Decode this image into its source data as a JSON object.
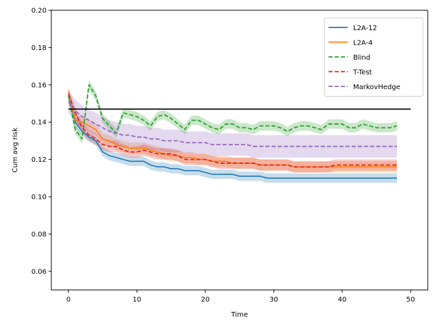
{
  "chart_data": {
    "type": "line",
    "title": "",
    "xlabel": "Time",
    "ylabel": "Cum avg risk",
    "xlim": [
      -2.5,
      52.5
    ],
    "ylim": [
      0.05,
      0.2
    ],
    "xticks": [
      0,
      10,
      20,
      30,
      40,
      50
    ],
    "yticks": [
      0.06,
      0.08,
      0.1,
      0.12,
      0.14,
      0.16,
      0.18,
      0.2
    ],
    "xtick_labels": [
      "0",
      "10",
      "20",
      "30",
      "40",
      "50"
    ],
    "ytick_labels": [
      "0.06",
      "0.08",
      "0.10",
      "0.12",
      "0.14",
      "0.16",
      "0.18",
      "0.20"
    ],
    "grid": false,
    "legend_position": "top-right",
    "x": [
      0,
      1,
      2,
      3,
      4,
      5,
      6,
      7,
      8,
      9,
      10,
      11,
      12,
      13,
      14,
      15,
      16,
      17,
      18,
      19,
      20,
      21,
      22,
      23,
      24,
      25,
      26,
      27,
      28,
      29,
      30,
      31,
      32,
      33,
      34,
      35,
      36,
      37,
      38,
      39,
      40,
      41,
      42,
      43,
      44,
      45,
      46,
      47,
      48
    ],
    "series": [
      {
        "name": "L2A-12",
        "color": "#1f77b4",
        "style": "solid",
        "values": [
          0.156,
          0.14,
          0.135,
          0.132,
          0.13,
          0.124,
          0.122,
          0.121,
          0.12,
          0.119,
          0.119,
          0.119,
          0.117,
          0.116,
          0.116,
          0.115,
          0.115,
          0.114,
          0.114,
          0.114,
          0.113,
          0.112,
          0.112,
          0.112,
          0.112,
          0.111,
          0.111,
          0.111,
          0.111,
          0.11,
          0.11,
          0.11,
          0.11,
          0.11,
          0.11,
          0.11,
          0.11,
          0.11,
          0.11,
          0.11,
          0.11,
          0.11,
          0.11,
          0.11,
          0.11,
          0.11,
          0.11,
          0.11,
          0.11
        ],
        "band": 0.0025
      },
      {
        "name": "L2A-4",
        "color": "#ff7f0e",
        "style": "solid",
        "values": [
          0.156,
          0.141,
          0.14,
          0.138,
          0.136,
          0.131,
          0.13,
          0.128,
          0.127,
          0.126,
          0.126,
          0.126,
          0.125,
          0.124,
          0.123,
          0.122,
          0.122,
          0.121,
          0.121,
          0.12,
          0.12,
          0.119,
          0.119,
          0.119,
          0.118,
          0.118,
          0.118,
          0.118,
          0.117,
          0.117,
          0.117,
          0.117,
          0.117,
          0.116,
          0.116,
          0.116,
          0.116,
          0.116,
          0.116,
          0.116,
          0.116,
          0.116,
          0.116,
          0.116,
          0.116,
          0.116,
          0.116,
          0.116,
          0.116
        ],
        "band": 0.003
      },
      {
        "name": "Blind",
        "color": "#2ca02c",
        "style": "dashed",
        "values": [
          0.154,
          0.136,
          0.131,
          0.16,
          0.154,
          0.142,
          0.138,
          0.134,
          0.145,
          0.144,
          0.143,
          0.141,
          0.138,
          0.143,
          0.144,
          0.142,
          0.139,
          0.136,
          0.141,
          0.141,
          0.139,
          0.137,
          0.136,
          0.139,
          0.139,
          0.137,
          0.137,
          0.136,
          0.138,
          0.138,
          0.138,
          0.137,
          0.135,
          0.137,
          0.138,
          0.138,
          0.137,
          0.136,
          0.139,
          0.139,
          0.139,
          0.137,
          0.137,
          0.139,
          0.138,
          0.137,
          0.137,
          0.137,
          0.138
        ],
        "band": 0.0025
      },
      {
        "name": "T-Test",
        "color": "#d62728",
        "style": "dashed",
        "values": [
          0.155,
          0.145,
          0.137,
          0.133,
          0.131,
          0.128,
          0.127,
          0.127,
          0.125,
          0.124,
          0.124,
          0.125,
          0.124,
          0.123,
          0.123,
          0.123,
          0.122,
          0.12,
          0.12,
          0.12,
          0.12,
          0.119,
          0.118,
          0.118,
          0.118,
          0.118,
          0.118,
          0.118,
          0.117,
          0.117,
          0.117,
          0.117,
          0.117,
          0.116,
          0.116,
          0.116,
          0.116,
          0.116,
          0.116,
          0.117,
          0.117,
          0.117,
          0.117,
          0.117,
          0.117,
          0.117,
          0.117,
          0.117,
          0.117
        ],
        "band": 0.003
      },
      {
        "name": "MarkovHedge",
        "color": "#9467bd",
        "style": "dashed",
        "values": [
          0.151,
          0.146,
          0.143,
          0.141,
          0.139,
          0.137,
          0.135,
          0.134,
          0.133,
          0.133,
          0.132,
          0.132,
          0.131,
          0.131,
          0.13,
          0.13,
          0.13,
          0.129,
          0.129,
          0.129,
          0.129,
          0.128,
          0.128,
          0.128,
          0.128,
          0.128,
          0.128,
          0.127,
          0.127,
          0.127,
          0.127,
          0.127,
          0.127,
          0.127,
          0.127,
          0.127,
          0.127,
          0.127,
          0.127,
          0.127,
          0.127,
          0.127,
          0.127,
          0.127,
          0.127,
          0.127,
          0.127,
          0.127,
          0.127
        ],
        "band": 0.006
      }
    ],
    "reference_line": {
      "x": [
        0,
        50
      ],
      "value": 0.147,
      "color": "#000000"
    }
  }
}
